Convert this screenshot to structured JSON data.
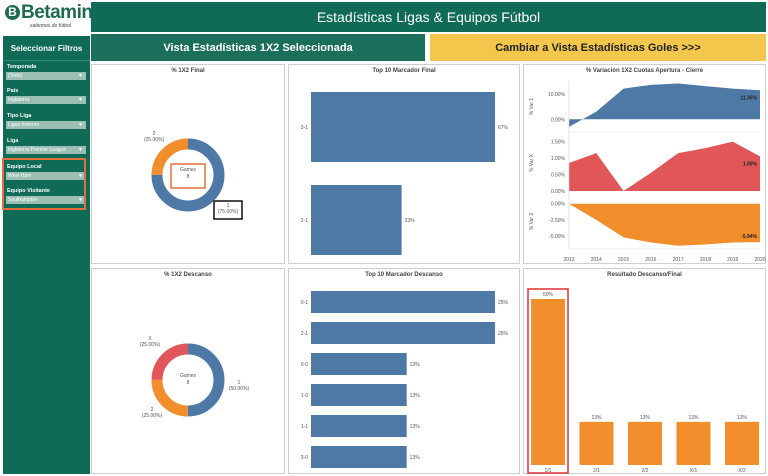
{
  "logo": {
    "brand": "Betaminic",
    "ball": "B",
    "tagline": "sabemos de fútbol"
  },
  "header": {
    "title": "Estadísticas Ligas & Equipos Fútbol"
  },
  "sidebar": {
    "title": "Seleccionar Filtros",
    "filters": [
      {
        "label": "Temporada",
        "value": "(Todo)"
      },
      {
        "label": "País",
        "value": "Inglaterra"
      },
      {
        "label": "Tipo Liga",
        "value": "Ligas Invierno"
      },
      {
        "label": "Liga",
        "value": "Inglaterra Premier League"
      },
      {
        "label": "Equipo Local",
        "value": "West Ham"
      },
      {
        "label": "Equipo Visitante",
        "value": "Southampton"
      }
    ]
  },
  "buttons": {
    "view_1x2": "Vista Estadísticas 1X2 Seleccionada",
    "view_goals": "Cambiar a Vista Estadísticas Goles >>>"
  },
  "colors": {
    "brand": "#0f6b55",
    "accent": "#f3c64c",
    "home": "#4e79a7",
    "draw": "#e15759",
    "away": "#f28e2b",
    "highlight_orange": "#e2703a",
    "highlight_red": "#e03030"
  },
  "panels": {
    "final_1x2": {
      "title": "% 1X2 Final",
      "center": {
        "label": "Games",
        "value": "8"
      },
      "labels": [
        {
          "cat": "2",
          "pct": "(25.00%)"
        },
        {
          "cat": "1",
          "pct": "(75.00%)"
        }
      ],
      "chart_data": {
        "type": "pie",
        "donut": true,
        "categories": [
          "1",
          "2"
        ],
        "values": [
          75.0,
          25.0
        ],
        "total": 8
      }
    },
    "top10_final": {
      "title": "Top 10 Marcador Final",
      "chart_data": {
        "type": "bar",
        "orientation": "horizontal",
        "categories": [
          "3-1",
          "2-1"
        ],
        "values": [
          67,
          33
        ],
        "value_labels": [
          "67%",
          "33%"
        ]
      }
    },
    "variation": {
      "title": "% Variación 1X2 Cuotas Apertura - Cierre",
      "x_ticks": [
        "2013",
        "2014",
        "2015",
        "2016",
        "2017",
        "2018",
        "2019",
        "2020"
      ],
      "chart_data": [
        {
          "type": "area",
          "ylabel": "% Var 1",
          "yticks": [
            "10.00%",
            "0.00%"
          ],
          "ylim": [
            -5,
            15
          ],
          "x": [
            2013,
            2014,
            2015,
            2016,
            2017,
            2018,
            2019,
            2020
          ],
          "values": [
            -3,
            3,
            12,
            13.5,
            14,
            13,
            12,
            11.35
          ],
          "end_label": "11.35%"
        },
        {
          "type": "area",
          "ylabel": "% Var X",
          "yticks": [
            "1.50%",
            "1.00%",
            "0.50%",
            "0.00%"
          ],
          "ylim": [
            0,
            1.7
          ],
          "x": [
            2013,
            2014,
            2015,
            2016,
            2017,
            2018,
            2019,
            2020
          ],
          "values": [
            0.85,
            1.15,
            0.0,
            0.55,
            1.15,
            1.3,
            1.5,
            1.05
          ],
          "end_label": "1.05%"
        },
        {
          "type": "area",
          "ylabel": "% Var 2",
          "yticks": [
            "0.00%",
            "-2.50%",
            "-5.00%"
          ],
          "ylim": [
            -7,
            1.5
          ],
          "x": [
            2013,
            2014,
            2015,
            2016,
            2017,
            2018,
            2019,
            2020
          ],
          "values": [
            0.0,
            -2.5,
            -5.2,
            -6.0,
            -6.5,
            -6.3,
            -6.0,
            -5.94
          ],
          "end_label": "-5.94%"
        }
      ]
    },
    "half_1x2": {
      "title": "% 1X2 Descanso",
      "center": {
        "label": "Games",
        "value": "8"
      },
      "labels": [
        {
          "cat": "X",
          "pct": "(25.00%)"
        },
        {
          "cat": "1",
          "pct": "(50.00%)"
        },
        {
          "cat": "2",
          "pct": "(25.00%)"
        }
      ],
      "chart_data": {
        "type": "pie",
        "donut": true,
        "categories": [
          "1",
          "2",
          "X"
        ],
        "values": [
          50.0,
          25.0,
          25.0
        ],
        "total": 8
      }
    },
    "top10_half": {
      "title": "Top 10 Marcador Descanso",
      "chart_data": {
        "type": "bar",
        "orientation": "horizontal",
        "categories": [
          "0-1",
          "2-1",
          "0-0",
          "1-0",
          "1-1",
          "3-0"
        ],
        "values": [
          25,
          25,
          13,
          13,
          13,
          13
        ],
        "value_labels": [
          "25%",
          "25%",
          "13%",
          "13%",
          "13%",
          "13%"
        ]
      }
    },
    "half_final": {
      "title": "Resultado Descanso/Final",
      "chart_data": {
        "type": "bar",
        "categories": [
          "1/1",
          "2/1",
          "2/2",
          "X/1",
          "X/2"
        ],
        "values": [
          50,
          13,
          13,
          13,
          13
        ],
        "value_labels": [
          "50%",
          "13%",
          "13%",
          "13%",
          "13%"
        ]
      }
    }
  }
}
